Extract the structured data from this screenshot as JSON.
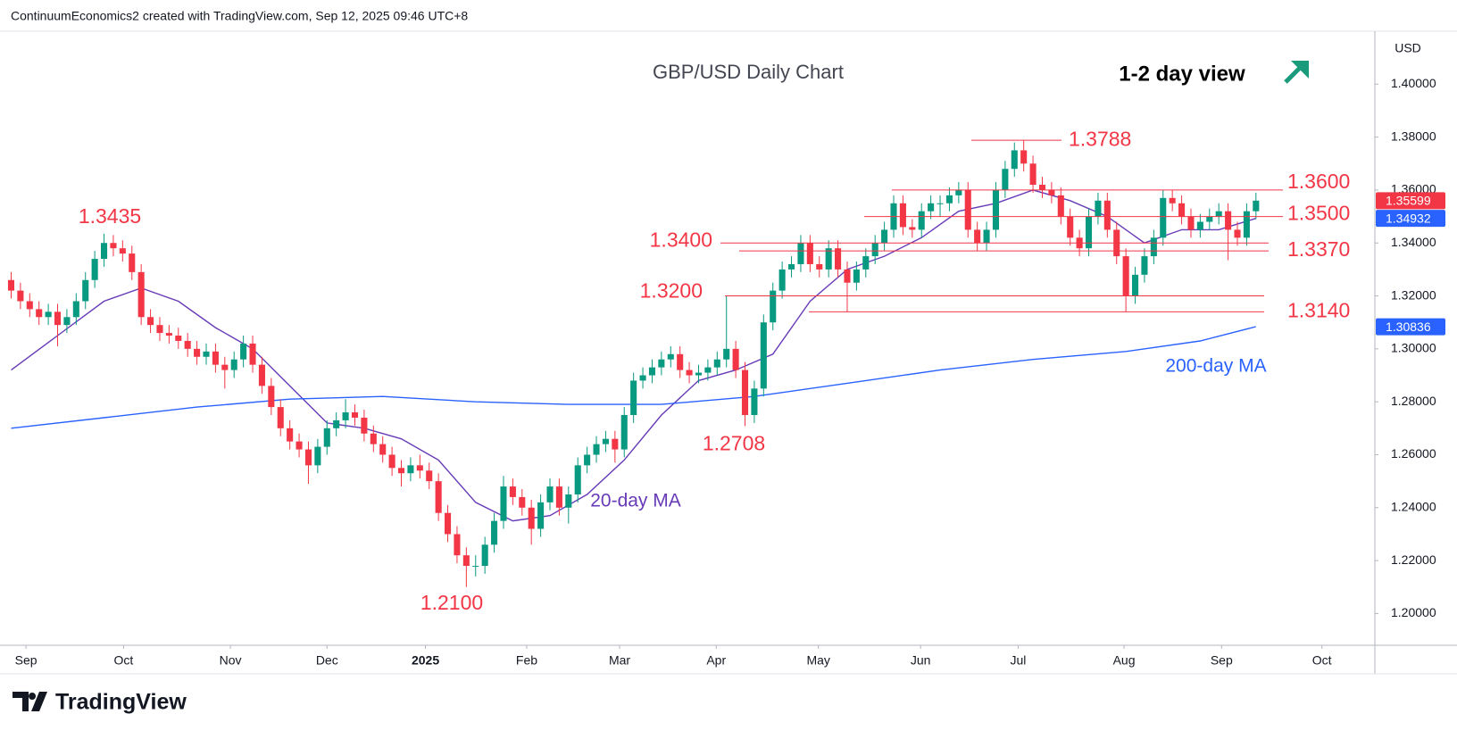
{
  "header": "ContinuumEconomics2 created with TradingView.com, Sep 12, 2025 09:46 UTC+8",
  "logo": "TradingView",
  "chart_data": {
    "type": "candlestick",
    "title": "GBP/USD Daily Chart",
    "subtitle": "1-2 day view",
    "currency": "USD",
    "up_color": "#089981",
    "down_color": "#f23645",
    "annotation_color": "#f23645",
    "grid": false,
    "xlim": [
      -1.2,
      146.8
    ],
    "xticks": [
      {
        "value": 1.6,
        "label": "Sep"
      },
      {
        "value": 12.1,
        "label": "Oct"
      },
      {
        "value": 23.6,
        "label": "Nov"
      },
      {
        "value": 34,
        "label": "Dec"
      },
      {
        "value": 44.6,
        "label": "2025"
      },
      {
        "value": 55.5,
        "label": "Feb"
      },
      {
        "value": 65.5,
        "label": "Mar"
      },
      {
        "value": 75.9,
        "label": "Apr"
      },
      {
        "value": 86.9,
        "label": "May"
      },
      {
        "value": 97.9,
        "label": "Jun"
      },
      {
        "value": 108.4,
        "label": "Jul"
      },
      {
        "value": 119.8,
        "label": "Aug"
      },
      {
        "value": 130.3,
        "label": "Sep"
      },
      {
        "value": 141.1,
        "label": "Oct"
      }
    ],
    "ylim": [
      1.188,
      1.42
    ],
    "yticks": [
      {
        "value": 1.2,
        "label": "1.20000"
      },
      {
        "value": 1.22,
        "label": "1.22000"
      },
      {
        "value": 1.24,
        "label": "1.24000"
      },
      {
        "value": 1.26,
        "label": "1.26000"
      },
      {
        "value": 1.28,
        "label": "1.28000"
      },
      {
        "value": 1.3,
        "label": "1.30000"
      },
      {
        "value": 1.32,
        "label": "1.32000"
      },
      {
        "value": 1.34,
        "label": "1.34000"
      },
      {
        "value": 1.36,
        "label": "1.36000"
      },
      {
        "value": 1.38,
        "label": "1.38000"
      },
      {
        "value": 1.4,
        "label": "1.40000"
      }
    ],
    "candles": [
      [
        1.326,
        1.329,
        1.319,
        1.322
      ],
      [
        1.322,
        1.325,
        1.315,
        1.318
      ],
      [
        1.318,
        1.321,
        1.312,
        1.315
      ],
      [
        1.315,
        1.318,
        1.309,
        1.312
      ],
      [
        1.312,
        1.317,
        1.309,
        1.314
      ],
      [
        1.314,
        1.317,
        1.301,
        1.309
      ],
      [
        1.309,
        1.315,
        1.306,
        1.312
      ],
      [
        1.312,
        1.321,
        1.309,
        1.318
      ],
      [
        1.318,
        1.329,
        1.315,
        1.326
      ],
      [
        1.326,
        1.337,
        1.323,
        1.334
      ],
      [
        1.334,
        1.3435,
        1.331,
        1.34
      ],
      [
        1.34,
        1.343,
        1.335,
        1.338
      ],
      [
        1.338,
        1.341,
        1.333,
        1.336
      ],
      [
        1.336,
        1.339,
        1.326,
        1.329
      ],
      [
        1.329,
        1.332,
        1.309,
        1.312
      ],
      [
        1.312,
        1.315,
        1.306,
        1.309
      ],
      [
        1.309,
        1.312,
        1.303,
        1.306
      ],
      [
        1.306,
        1.309,
        1.302,
        1.305
      ],
      [
        1.305,
        1.308,
        1.3,
        1.303
      ],
      [
        1.303,
        1.306,
        1.297,
        1.3
      ],
      [
        1.3,
        1.303,
        1.294,
        1.297
      ],
      [
        1.297,
        1.302,
        1.294,
        1.299
      ],
      [
        1.299,
        1.302,
        1.291,
        1.294
      ],
      [
        1.294,
        1.297,
        1.285,
        1.292
      ],
      [
        1.292,
        1.299,
        1.289,
        1.296
      ],
      [
        1.296,
        1.305,
        1.293,
        1.302
      ],
      [
        1.302,
        1.305,
        1.291,
        1.294
      ],
      [
        1.294,
        1.297,
        1.283,
        1.286
      ],
      [
        1.286,
        1.289,
        1.275,
        1.278
      ],
      [
        1.278,
        1.281,
        1.267,
        1.27
      ],
      [
        1.27,
        1.273,
        1.262,
        1.265
      ],
      [
        1.265,
        1.268,
        1.259,
        1.262
      ],
      [
        1.262,
        1.265,
        1.249,
        1.256
      ],
      [
        1.256,
        1.266,
        1.253,
        1.263
      ],
      [
        1.263,
        1.273,
        1.26,
        1.27
      ],
      [
        1.27,
        1.276,
        1.267,
        1.273
      ],
      [
        1.273,
        1.281,
        1.27,
        1.276
      ],
      [
        1.276,
        1.279,
        1.271,
        1.274
      ],
      [
        1.274,
        1.277,
        1.265,
        1.268
      ],
      [
        1.268,
        1.271,
        1.261,
        1.264
      ],
      [
        1.264,
        1.267,
        1.257,
        1.26
      ],
      [
        1.26,
        1.263,
        1.252,
        1.255
      ],
      [
        1.255,
        1.258,
        1.248,
        1.253
      ],
      [
        1.253,
        1.259,
        1.25,
        1.256
      ],
      [
        1.256,
        1.26,
        1.251,
        1.254
      ],
      [
        1.254,
        1.257,
        1.247,
        1.25
      ],
      [
        1.25,
        1.253,
        1.235,
        1.238
      ],
      [
        1.238,
        1.241,
        1.227,
        1.23
      ],
      [
        1.23,
        1.233,
        1.219,
        1.222
      ],
      [
        1.222,
        1.225,
        1.21,
        1.218
      ],
      [
        1.218,
        1.222,
        1.214,
        1.218
      ],
      [
        1.218,
        1.229,
        1.215,
        1.226
      ],
      [
        1.226,
        1.238,
        1.223,
        1.235
      ],
      [
        1.235,
        1.252,
        1.232,
        1.248
      ],
      [
        1.248,
        1.251,
        1.241,
        1.244
      ],
      [
        1.244,
        1.247,
        1.237,
        1.24
      ],
      [
        1.24,
        1.243,
        1.226,
        1.232
      ],
      [
        1.232,
        1.245,
        1.229,
        1.242
      ],
      [
        1.242,
        1.251,
        1.239,
        1.248
      ],
      [
        1.248,
        1.251,
        1.237,
        1.24
      ],
      [
        1.24,
        1.248,
        1.234,
        1.245
      ],
      [
        1.245,
        1.259,
        1.242,
        1.256
      ],
      [
        1.256,
        1.263,
        1.253,
        1.26
      ],
      [
        1.26,
        1.267,
        1.257,
        1.264
      ],
      [
        1.264,
        1.269,
        1.261,
        1.266
      ],
      [
        1.266,
        1.269,
        1.257,
        1.262
      ],
      [
        1.262,
        1.278,
        1.259,
        1.275
      ],
      [
        1.275,
        1.291,
        1.272,
        1.288
      ],
      [
        1.288,
        1.293,
        1.285,
        1.29
      ],
      [
        1.29,
        1.296,
        1.287,
        1.293
      ],
      [
        1.293,
        1.299,
        1.29,
        1.296
      ],
      [
        1.296,
        1.301,
        1.293,
        1.298
      ],
      [
        1.298,
        1.301,
        1.289,
        1.292
      ],
      [
        1.292,
        1.295,
        1.287,
        1.29
      ],
      [
        1.29,
        1.294,
        1.287,
        1.291
      ],
      [
        1.291,
        1.296,
        1.288,
        1.293
      ],
      [
        1.293,
        1.299,
        1.29,
        1.296
      ],
      [
        1.296,
        1.32,
        1.293,
        1.3
      ],
      [
        1.3,
        1.303,
        1.289,
        1.292
      ],
      [
        1.292,
        1.295,
        1.2708,
        1.275
      ],
      [
        1.275,
        1.288,
        1.272,
        1.285
      ],
      [
        1.285,
        1.313,
        1.282,
        1.31
      ],
      [
        1.31,
        1.325,
        1.307,
        1.322
      ],
      [
        1.322,
        1.333,
        1.319,
        1.33
      ],
      [
        1.33,
        1.335,
        1.327,
        1.332
      ],
      [
        1.332,
        1.343,
        1.329,
        1.34
      ],
      [
        1.34,
        1.343,
        1.329,
        1.332
      ],
      [
        1.332,
        1.335,
        1.327,
        1.33
      ],
      [
        1.33,
        1.341,
        1.327,
        1.338
      ],
      [
        1.338,
        1.341,
        1.327,
        1.33
      ],
      [
        1.33,
        1.333,
        1.314,
        1.325
      ],
      [
        1.325,
        1.333,
        1.322,
        1.33
      ],
      [
        1.33,
        1.338,
        1.327,
        1.335
      ],
      [
        1.335,
        1.343,
        1.332,
        1.34
      ],
      [
        1.34,
        1.348,
        1.337,
        1.345
      ],
      [
        1.345,
        1.358,
        1.342,
        1.355
      ],
      [
        1.355,
        1.358,
        1.343,
        1.346
      ],
      [
        1.346,
        1.349,
        1.342,
        1.345
      ],
      [
        1.345,
        1.355,
        1.342,
        1.352
      ],
      [
        1.352,
        1.358,
        1.349,
        1.355
      ],
      [
        1.355,
        1.358,
        1.35,
        1.355
      ],
      [
        1.355,
        1.361,
        1.352,
        1.358
      ],
      [
        1.358,
        1.363,
        1.355,
        1.36
      ],
      [
        1.36,
        1.363,
        1.342,
        1.345
      ],
      [
        1.345,
        1.348,
        1.337,
        1.34
      ],
      [
        1.34,
        1.348,
        1.337,
        1.345
      ],
      [
        1.345,
        1.363,
        1.342,
        1.36
      ],
      [
        1.36,
        1.371,
        1.357,
        1.368
      ],
      [
        1.368,
        1.378,
        1.365,
        1.375
      ],
      [
        1.375,
        1.3788,
        1.367,
        1.37
      ],
      [
        1.37,
        1.373,
        1.359,
        1.362
      ],
      [
        1.362,
        1.365,
        1.357,
        1.36
      ],
      [
        1.36,
        1.363,
        1.355,
        1.358
      ],
      [
        1.358,
        1.361,
        1.347,
        1.35
      ],
      [
        1.35,
        1.353,
        1.339,
        1.342
      ],
      [
        1.342,
        1.345,
        1.335,
        1.338
      ],
      [
        1.338,
        1.353,
        1.335,
        1.35
      ],
      [
        1.35,
        1.359,
        1.347,
        1.356
      ],
      [
        1.356,
        1.359,
        1.342,
        1.345
      ],
      [
        1.345,
        1.348,
        1.332,
        1.335
      ],
      [
        1.335,
        1.338,
        1.314,
        1.32
      ],
      [
        1.32,
        1.331,
        1.317,
        1.328
      ],
      [
        1.328,
        1.338,
        1.325,
        1.335
      ],
      [
        1.335,
        1.345,
        1.332,
        1.342
      ],
      [
        1.342,
        1.36,
        1.339,
        1.357
      ],
      [
        1.357,
        1.36,
        1.352,
        1.355
      ],
      [
        1.355,
        1.358,
        1.347,
        1.35
      ],
      [
        1.35,
        1.353,
        1.342,
        1.345
      ],
      [
        1.345,
        1.351,
        1.342,
        1.348
      ],
      [
        1.348,
        1.353,
        1.345,
        1.35
      ],
      [
        1.35,
        1.355,
        1.347,
        1.352
      ],
      [
        1.352,
        1.355,
        1.3335,
        1.345
      ],
      [
        1.345,
        1.348,
        1.339,
        1.342
      ],
      [
        1.342,
        1.355,
        1.339,
        1.352
      ],
      [
        1.352,
        1.359,
        1.349,
        1.356
      ]
    ],
    "series": [
      {
        "name": "20-day MA",
        "color": "#673ab7",
        "x": [
          0,
          5,
          10,
          14,
          18,
          22,
          26,
          30,
          34,
          38,
          42,
          46,
          50,
          54,
          58,
          62,
          66,
          70,
          74,
          78,
          82,
          86,
          90,
          94,
          98,
          102,
          106,
          110,
          114,
          118,
          122,
          126,
          130,
          134
        ],
        "values": [
          1.292,
          1.305,
          1.318,
          1.323,
          1.318,
          1.308,
          1.3,
          1.286,
          1.272,
          1.27,
          1.266,
          1.258,
          1.242,
          1.235,
          1.237,
          1.245,
          1.258,
          1.275,
          1.288,
          1.292,
          1.298,
          1.318,
          1.33,
          1.335,
          1.342,
          1.352,
          1.355,
          1.36,
          1.356,
          1.35,
          1.34,
          1.345,
          1.345,
          1.3493
        ]
      },
      {
        "name": "200-day MA",
        "color": "#2962ff",
        "x": [
          0,
          10,
          20,
          30,
          40,
          50,
          60,
          70,
          80,
          90,
          100,
          110,
          120,
          128,
          134
        ],
        "values": [
          1.27,
          1.274,
          1.278,
          1.281,
          1.282,
          1.28,
          1.279,
          1.279,
          1.282,
          1.287,
          1.292,
          1.296,
          1.299,
          1.303,
          1.3084
        ]
      }
    ],
    "levels": [
      {
        "value": 1.3788,
        "label": "1.3788"
      },
      {
        "value": 1.36,
        "label": "1.3600"
      },
      {
        "value": 1.35,
        "label": "1.3500"
      },
      {
        "value": 1.34,
        "label": "1.3400"
      },
      {
        "value": 1.337,
        "label": "1.3370"
      },
      {
        "value": 1.32,
        "label": "1.3200"
      },
      {
        "value": 1.314,
        "label": "1.3140"
      }
    ],
    "annotations": [
      {
        "value": 1.3435,
        "label": "1.3435"
      },
      {
        "value": 1.21,
        "label": "1.2100"
      },
      {
        "value": 1.2708,
        "label": "1.2708"
      }
    ],
    "price_labels": {
      "values": [
        1.35599,
        1.34932,
        1.30836
      ],
      "colors": [
        "#f23645",
        "#2962ff",
        "#2962ff"
      ]
    }
  }
}
